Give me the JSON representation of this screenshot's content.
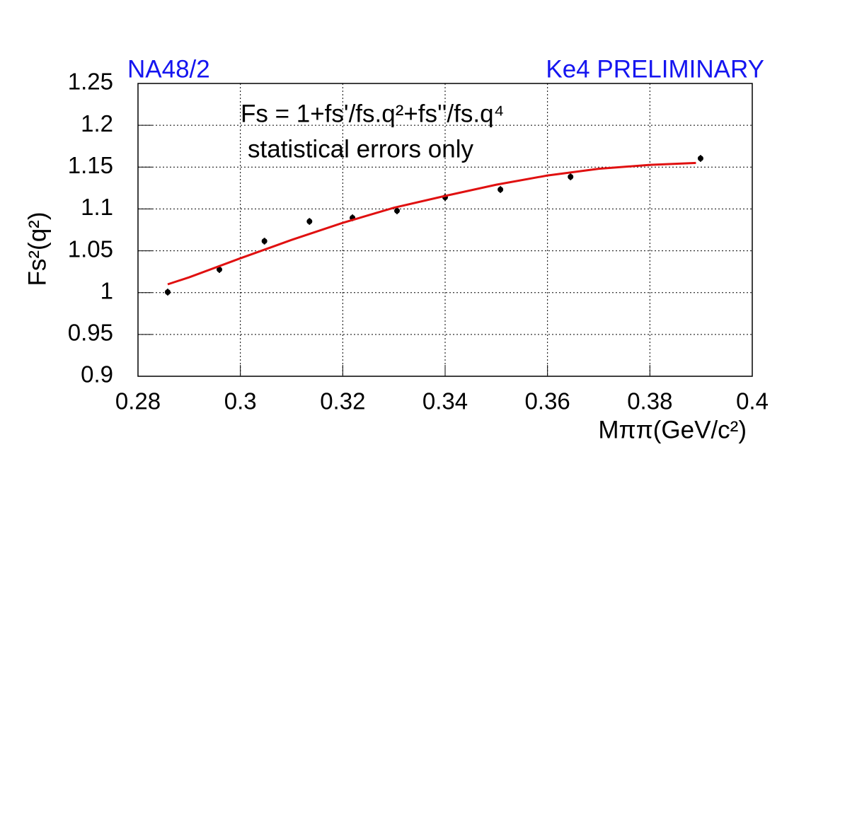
{
  "chart_data": {
    "type": "scatter",
    "title_left": "NA48/2",
    "title_right": "Ke4 PRELIMINARY",
    "annotations": [
      "Fs = 1+fs'/fs.q²+fs''/fs.q⁴",
      "statistical errors only"
    ],
    "x_label": "Mππ(GeV/c²)",
    "y_label": "Fs²(q²)",
    "xlim": [
      0.28,
      0.4
    ],
    "xticks": [
      0.28,
      0.3,
      0.32,
      0.34,
      0.36,
      0.38,
      0.4
    ],
    "ylim": [
      0.9,
      1.25
    ],
    "yticks": [
      0.9,
      0.95,
      1,
      1.05,
      1.1,
      1.15,
      1.2,
      1.25
    ],
    "grid": true,
    "series": [
      {
        "name": "data",
        "color": "#000000",
        "style": "points",
        "x": [
          0.2858,
          0.2959,
          0.3047,
          0.3135,
          0.3219,
          0.3306,
          0.34,
          0.3508,
          0.3645,
          0.3899
        ],
        "values": [
          1.0006,
          1.0276,
          1.0615,
          1.0851,
          1.0894,
          1.0978,
          1.1139,
          1.1232,
          1.1384,
          1.1604
        ],
        "errors": [
          0.004,
          0.004,
          0.004,
          0.004,
          0.004,
          0.004,
          0.004,
          0.004,
          0.004,
          0.004
        ]
      },
      {
        "name": "fit",
        "color": "#e01010",
        "style": "line",
        "x": [
          0.2858,
          0.29,
          0.3,
          0.31,
          0.32,
          0.33,
          0.34,
          0.35,
          0.36,
          0.37,
          0.38,
          0.389
        ],
        "values": [
          1.0099,
          1.0183,
          1.041,
          1.063,
          1.0834,
          1.1015,
          1.1156,
          1.129,
          1.14,
          1.148,
          1.1527,
          1.155
        ]
      }
    ]
  }
}
